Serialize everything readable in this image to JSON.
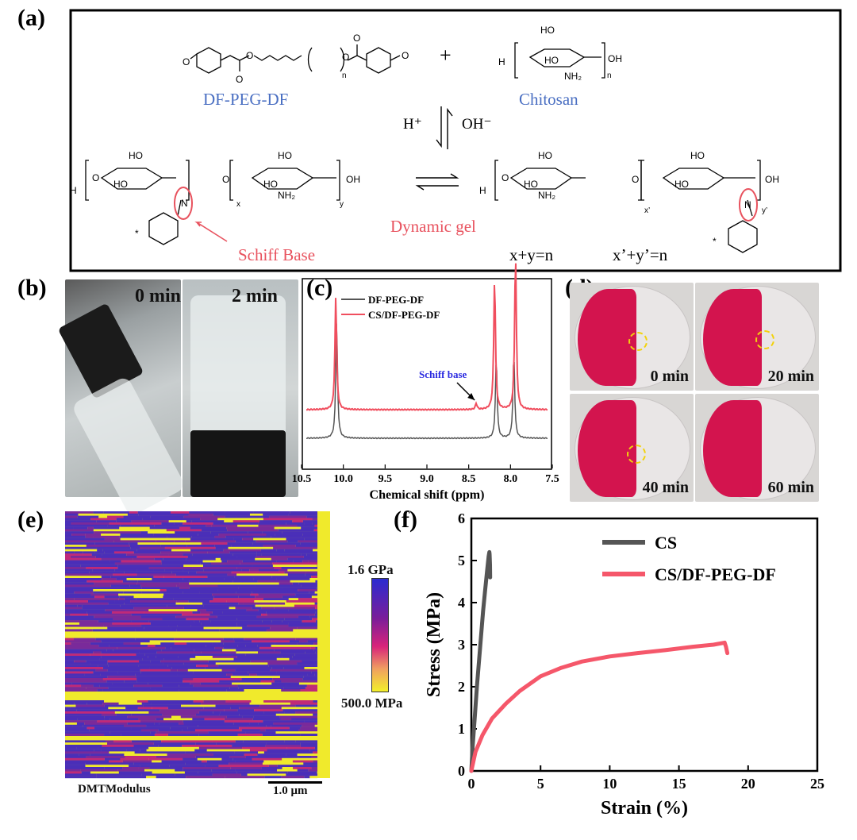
{
  "panels": {
    "a": {
      "label": "(a)",
      "reactant1": "DF-PEG-DF",
      "reactant2": "Chitosan",
      "plus": "+",
      "acid": "H⁺",
      "base": "OH⁻",
      "gel_label": "Dynamic gel",
      "schiff_label": "Schiff Base",
      "eq1": "x+y=n",
      "eq2": "x’+y’=n",
      "subscripts": {
        "n": "n",
        "x": "x",
        "y": "y",
        "xp": "x’",
        "yp": "y’"
      },
      "groups": {
        "ho": "HO",
        "oh": "OH",
        "nh2": "NH₂",
        "n": "N",
        "o": "O",
        "h": "H",
        "star": "*"
      },
      "colors": {
        "blue": "#4a6fc2",
        "red": "#e8525e"
      }
    },
    "b": {
      "label": "(b)",
      "t0": "0 min",
      "t2": "2 min"
    },
    "c": {
      "label": "(c)",
      "legend": [
        "DF-PEG-DF",
        "CS/DF-PEG-DF"
      ],
      "annotation": "Schiff base",
      "xlabel": "Chemical shift (ppm)",
      "xticks": [
        "10.5",
        "10.0",
        "9.5",
        "9.0",
        "8.5",
        "8.0",
        "7.5"
      ]
    },
    "d": {
      "label": "(d)",
      "times": [
        "0 min",
        "20 min",
        "40 min",
        "60 min"
      ]
    },
    "e": {
      "label": "(e)",
      "colorbar_max": "1.6 GPa",
      "colorbar_min": "500.0 MPa",
      "channel": "DMTModulus",
      "scalebar": "1.0 μm"
    },
    "f": {
      "label": "(f)"
    }
  },
  "chart_data": [
    {
      "type": "line",
      "panel": "c",
      "xlabel": "Chemical shift (ppm)",
      "ylabel": "",
      "xlim": [
        10.5,
        7.5
      ],
      "x_reversed": true,
      "series": [
        {
          "name": "DF-PEG-DF",
          "color": "#555555",
          "peaks": [
            [
              10.08,
              1.0
            ],
            [
              8.17,
              0.68
            ],
            [
              7.96,
              0.72
            ]
          ]
        },
        {
          "name": "CS/DF-PEG-DF",
          "color": "#f04e5e",
          "peaks": [
            [
              10.09,
              0.95
            ],
            [
              8.41,
              0.05
            ],
            [
              8.19,
              1.1
            ],
            [
              7.94,
              1.3
            ]
          ]
        }
      ],
      "annotations": [
        {
          "text": "Schiff base",
          "x": 8.41
        }
      ]
    },
    {
      "type": "line",
      "panel": "f",
      "xlabel": "Strain (%)",
      "ylabel": "Stress (MPa)",
      "xlim": [
        0,
        25
      ],
      "ylim": [
        0,
        6
      ],
      "xticks": [
        0,
        5,
        10,
        15,
        20,
        25
      ],
      "yticks": [
        0,
        1,
        2,
        3,
        4,
        5,
        6
      ],
      "legend_position": "top-right",
      "series": [
        {
          "name": "CS",
          "color": "#555555",
          "x": [
            0,
            0.1,
            0.25,
            0.4,
            0.55,
            0.7,
            0.85,
            1.0,
            1.15,
            1.25,
            1.3,
            1.32,
            1.35,
            1.36
          ],
          "y": [
            0,
            0.6,
            1.3,
            2.0,
            2.6,
            3.2,
            3.8,
            4.3,
            4.8,
            5.1,
            5.2,
            5.15,
            4.9,
            4.6
          ]
        },
        {
          "name": "CS/DF-PEG-DF",
          "color": "#f5576a",
          "x": [
            0,
            0.3,
            0.8,
            1.5,
            2.5,
            3.5,
            5,
            6.5,
            8,
            10,
            12,
            14,
            16,
            17.5,
            18.3,
            18.4,
            18.5
          ],
          "y": [
            0,
            0.45,
            0.85,
            1.25,
            1.6,
            1.9,
            2.25,
            2.45,
            2.6,
            2.72,
            2.8,
            2.87,
            2.95,
            3.0,
            3.05,
            2.95,
            2.8
          ]
        }
      ]
    }
  ]
}
